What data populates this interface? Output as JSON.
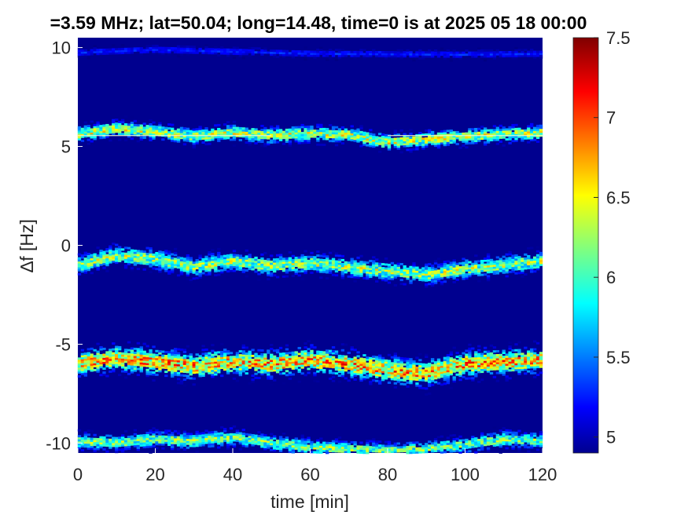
{
  "chart_data": {
    "type": "heatmap",
    "title": "=3.59 MHz;  lat=50.04; long=14.48, time=0 is at 2025 05 18 00:00",
    "xlabel": "time [min]",
    "ylabel": "∆f [Hz]",
    "xlim": [
      0,
      120
    ],
    "ylim": [
      -10.5,
      10.5
    ],
    "x_ticks": [
      0,
      20,
      40,
      60,
      80,
      100,
      120
    ],
    "x_tick_labels": [
      "0",
      "20",
      "40",
      "60",
      "80",
      "100",
      "120"
    ],
    "y_ticks": [
      -10,
      -5,
      0,
      5,
      10
    ],
    "y_tick_labels": [
      "-10",
      "-5",
      "0",
      "5",
      "10"
    ],
    "colorbar": {
      "range": [
        4.9,
        7.5
      ],
      "ticks": [
        5,
        5.5,
        6,
        6.5,
        7,
        7.5
      ],
      "tick_labels": [
        "5",
        "5.5",
        "6",
        "6.5",
        "7",
        "7.5"
      ],
      "colormap": "jet"
    },
    "background_value": 4.9,
    "traces": [
      {
        "center": [
          [
            0,
            5.6
          ],
          [
            10,
            5.9
          ],
          [
            20,
            5.75
          ],
          [
            30,
            5.5
          ],
          [
            40,
            5.7
          ],
          [
            50,
            5.55
          ],
          [
            60,
            5.65
          ],
          [
            70,
            5.6
          ],
          [
            80,
            5.2
          ],
          [
            90,
            5.35
          ],
          [
            100,
            5.5
          ],
          [
            110,
            5.6
          ],
          [
            120,
            5.7
          ]
        ],
        "spread": 0.25,
        "peak": 6.8
      },
      {
        "center": [
          [
            0,
            -1.0
          ],
          [
            10,
            -0.5
          ],
          [
            20,
            -0.7
          ],
          [
            30,
            -1.1
          ],
          [
            40,
            -0.8
          ],
          [
            50,
            -1.05
          ],
          [
            60,
            -0.9
          ],
          [
            70,
            -1.1
          ],
          [
            80,
            -1.3
          ],
          [
            90,
            -1.5
          ],
          [
            100,
            -1.2
          ],
          [
            110,
            -1.0
          ],
          [
            120,
            -0.8
          ]
        ],
        "spread": 0.3,
        "peak": 6.7
      },
      {
        "center": [
          [
            0,
            -6.0
          ],
          [
            10,
            -5.7
          ],
          [
            20,
            -5.9
          ],
          [
            30,
            -6.1
          ],
          [
            40,
            -5.9
          ],
          [
            50,
            -6.0
          ],
          [
            60,
            -5.8
          ],
          [
            70,
            -6.0
          ],
          [
            80,
            -6.3
          ],
          [
            90,
            -6.5
          ],
          [
            100,
            -6.0
          ],
          [
            110,
            -5.9
          ],
          [
            120,
            -5.8
          ]
        ],
        "spread": 0.4,
        "peak": 7.3
      },
      {
        "center": [
          [
            0,
            -9.9
          ],
          [
            10,
            -10.0
          ],
          [
            20,
            -9.8
          ],
          [
            30,
            -9.9
          ],
          [
            40,
            -9.7
          ],
          [
            50,
            -10.0
          ],
          [
            60,
            -10.2
          ],
          [
            70,
            -10.3
          ],
          [
            80,
            -10.4
          ],
          [
            90,
            -10.3
          ],
          [
            100,
            -10.1
          ],
          [
            110,
            -9.8
          ],
          [
            120,
            -9.9
          ]
        ],
        "spread": 0.25,
        "peak": 6.6
      },
      {
        "center": [
          [
            0,
            9.75
          ],
          [
            20,
            9.9
          ],
          [
            60,
            9.7
          ],
          [
            100,
            9.65
          ],
          [
            120,
            9.7
          ]
        ],
        "spread": 0.12,
        "peak": 5.4
      }
    ],
    "reference_lines": [
      {
        "y": 5.55,
        "x_range": [
          0,
          50
        ]
      },
      {
        "y": 5.55,
        "x_range": [
          80,
          120
        ]
      }
    ]
  }
}
